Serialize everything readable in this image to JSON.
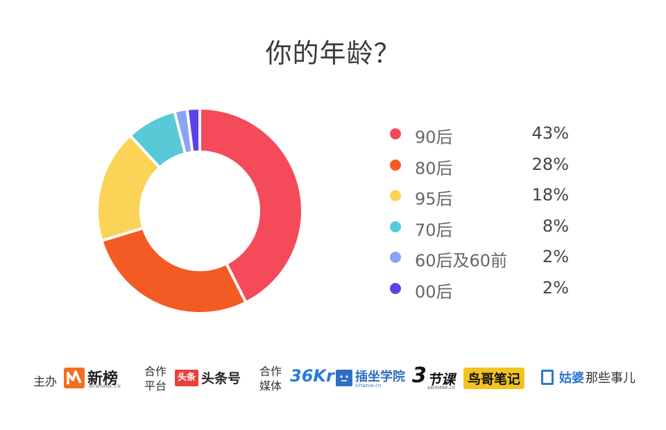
{
  "title": "你的年龄？",
  "chart_data": {
    "type": "pie",
    "title": "你的年龄？",
    "categories": [
      "90后",
      "80后",
      "95后",
      "70后",
      "60后及60前",
      "00后"
    ],
    "values": [
      43,
      28,
      18,
      8,
      2,
      2
    ],
    "value_labels": [
      "43%",
      "28%",
      "18%",
      "8%",
      "2%",
      "2%"
    ],
    "colors": [
      "#f54a5a",
      "#f45a24",
      "#fbd457",
      "#58c9d7",
      "#8aa3f5",
      "#5a44e6"
    ],
    "legend_position": "right",
    "style": "donut"
  },
  "footer": {
    "host_label": "主办",
    "host_logo": "新榜",
    "host_logo_sub": "NEWRANK.CN",
    "platform_label_1": "合作",
    "platform_label_2": "平台",
    "platform_logo_badge": "头条",
    "platform_logo": "头条号",
    "media_label_1": "合作",
    "media_label_2": "媒体",
    "media_logos": {
      "kr36": "36Kr",
      "chazuo": "插坐学院",
      "chazuo_sub": "ichazuo.cn",
      "jieke_num": "3",
      "jieke": "节课",
      "jieke_sub": "santieke.cn",
      "niaoge": "鸟哥笔记",
      "gupo_brand": "姑婆",
      "gupo_rest": "那些事儿"
    }
  }
}
